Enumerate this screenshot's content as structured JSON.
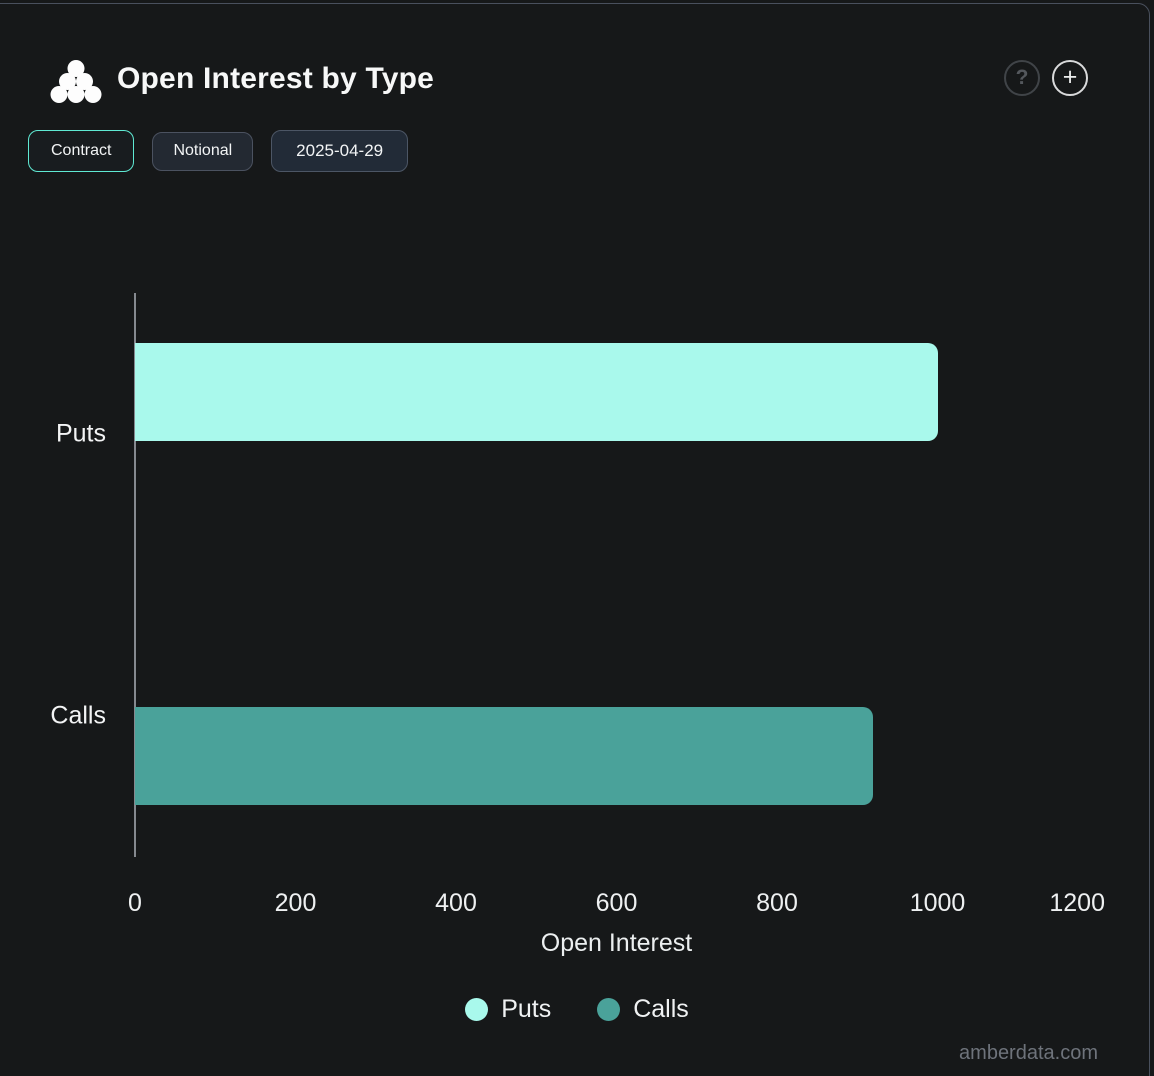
{
  "header": {
    "title": "Open Interest by Type",
    "help_glyph": "?",
    "add_glyph": "+"
  },
  "toolbar": {
    "contract_label": "Contract",
    "notional_label": "Notional",
    "date_label": "2025-04-29",
    "active_toggle": "Contract"
  },
  "chart_data": {
    "type": "bar",
    "orientation": "horizontal",
    "title": "Open Interest by Type",
    "categories": [
      "Puts",
      "Calls"
    ],
    "series": [
      {
        "name": "Puts",
        "color": "#a9f9ec",
        "values": [
          1000,
          null
        ]
      },
      {
        "name": "Calls",
        "color": "#4aa29a",
        "values": [
          null,
          920
        ]
      }
    ],
    "xlabel": "Open Interest",
    "xlim": [
      0,
      1200
    ],
    "xticks": [
      0,
      200,
      400,
      600,
      800,
      1000,
      1200
    ],
    "grid": false,
    "legend": {
      "position": "bottom",
      "entries": [
        "Puts",
        "Calls"
      ]
    }
  },
  "watermark": "amberdata.com",
  "colors": {
    "background": "#161819",
    "card_border": "#49505d",
    "puts": "#a9f9ec",
    "calls": "#4aa29a",
    "active_button_border": "#5fe9d3",
    "inactive_button_border": "#4b5260",
    "text_primary": "#f5f6f7",
    "watermark_text": "#6e737b"
  }
}
